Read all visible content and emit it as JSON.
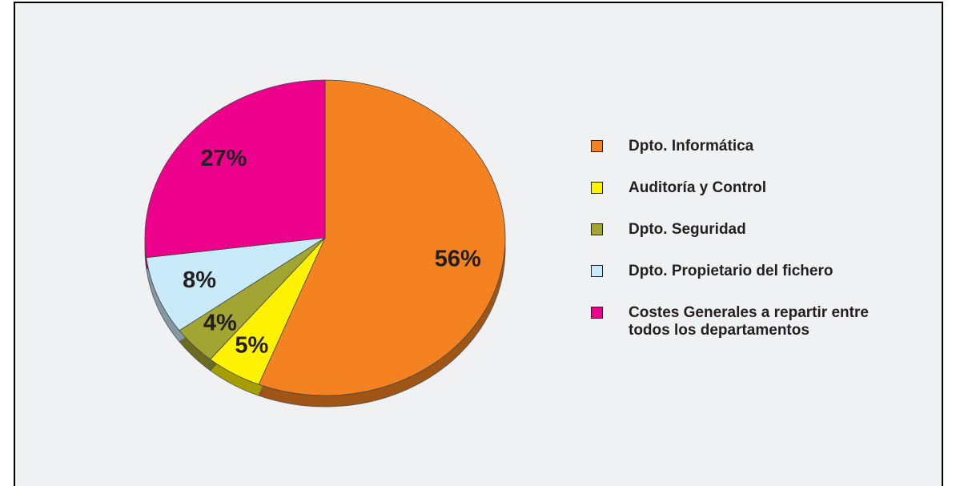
{
  "chart_data": {
    "type": "pie",
    "categories": [
      "Dpto. Informática",
      "Auditoría y Control",
      "Dpto. Seguridad",
      "Dpto. Propietario del fichero",
      "Costes Generales a repartir entre todos los departamentos"
    ],
    "values": [
      56,
      5,
      4,
      8,
      27
    ],
    "value_labels": [
      "56%",
      "5%",
      "4%",
      "8%",
      "27%"
    ],
    "colors": [
      "#f58220",
      "#fff200",
      "#a3a533",
      "#c9eaf8",
      "#ec008c"
    ],
    "legend": "right"
  }
}
